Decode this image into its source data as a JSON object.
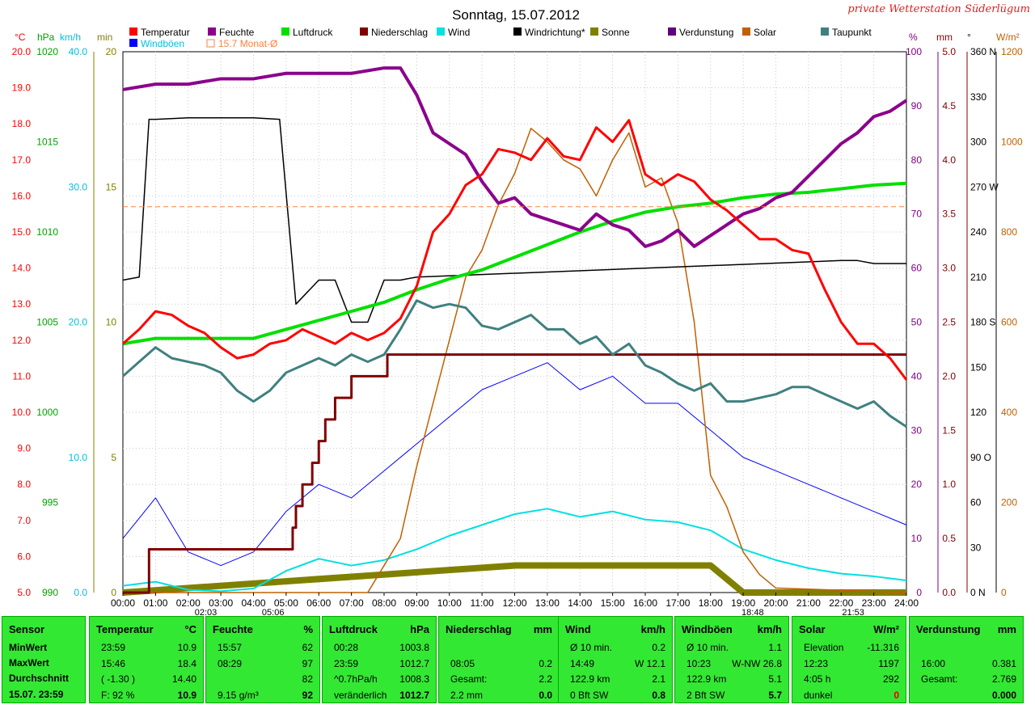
{
  "title": "Sonntag, 15.07.2012",
  "credit": "private Wetterstation Süderlügum",
  "legend": [
    {
      "label": "Temperatur",
      "color": "#ff0000"
    },
    {
      "label": "Feuchte",
      "color": "#8b008b"
    },
    {
      "label": "Luftdruck",
      "color": "#00e000"
    },
    {
      "label": "Niederschlag",
      "color": "#800000"
    },
    {
      "label": "Wind",
      "color": "#00e0e0"
    },
    {
      "label": "Windrichtung*",
      "color": "#000000"
    },
    {
      "label": "Sonne",
      "color": "#808000"
    },
    {
      "label": "Verdunstung",
      "color": "#600080"
    },
    {
      "label": "Solar",
      "color": "#c06000"
    },
    {
      "label": "Taupunkt",
      "color": "#408080"
    },
    {
      "label": "Windböen",
      "color": "#0000ff"
    },
    {
      "label": "15.7 Monat-Ø",
      "color": "#ff8040"
    }
  ],
  "axis_units": {
    "temp": "°C",
    "press": "hPa",
    "wind": "km/h",
    "min": "min",
    "hum": "%",
    "rain": "mm",
    "dir": "°",
    "solar": "W/m²"
  },
  "events": [
    "02:03",
    "05:06",
    "18:48",
    "21:53"
  ],
  "chart_data": {
    "type": "line",
    "x_ticks": [
      "00:00",
      "01:00",
      "02:00",
      "03:00",
      "04:00",
      "05:00",
      "06:00",
      "07:00",
      "08:00",
      "09:00",
      "10:00",
      "11:00",
      "12:00",
      "13:00",
      "14:00",
      "15:00",
      "16:00",
      "17:00",
      "18:00",
      "19:00",
      "20:00",
      "21:00",
      "22:00",
      "23:00",
      "24:00"
    ],
    "axes": {
      "temp": {
        "ticks": [
          "20.0",
          "19.0",
          "18.0",
          "17.0",
          "16.0",
          "15.0",
          "14.0",
          "13.0",
          "12.0",
          "11.0",
          "10.0",
          "9.0",
          "8.0",
          "7.0",
          "6.0",
          "5.0"
        ],
        "ylim": [
          5,
          20
        ]
      },
      "press": {
        "ticks": [
          "1020",
          "1015",
          "1010",
          "1005",
          "1000",
          "995",
          "990"
        ],
        "ylim": [
          990,
          1020
        ]
      },
      "wind": {
        "ticks": [
          "40.0",
          "30.0",
          "20.0",
          "10.0",
          "0.0"
        ],
        "ylim": [
          0,
          40
        ]
      },
      "min": {
        "ticks": [
          "20",
          "15",
          "10",
          "5",
          "0"
        ],
        "ylim": [
          0,
          20
        ]
      },
      "hum": {
        "ticks": [
          "100",
          "90",
          "80",
          "70",
          "60",
          "50",
          "40",
          "30",
          "20",
          "10",
          "0"
        ],
        "ylim": [
          0,
          100
        ]
      },
      "rain": {
        "ticks": [
          "5.0",
          "4.5",
          "4.0",
          "3.5",
          "3.0",
          "2.5",
          "2.0",
          "1.5",
          "1.0",
          "0.5",
          "0.0"
        ],
        "ylim": [
          0,
          5
        ]
      },
      "dir": {
        "ticks": [
          "360 N",
          "330",
          "300",
          "270 W",
          "240",
          "210",
          "180 S",
          "150",
          "120",
          "90 O",
          "60",
          "30",
          "0 N"
        ],
        "ylim": [
          0,
          360
        ]
      },
      "solar": {
        "ticks": [
          "1200",
          "1000",
          "800",
          "600",
          "400",
          "200",
          "0"
        ],
        "ylim": [
          0,
          1200
        ]
      }
    },
    "series": [
      {
        "name": "Temperatur",
        "color": "#ff0000",
        "x": [
          0,
          0.5,
          1,
          1.5,
          2,
          2.5,
          3,
          3.5,
          4,
          4.5,
          5,
          5.5,
          6,
          6.5,
          7,
          7.5,
          8,
          8.5,
          9,
          9.5,
          10,
          10.5,
          11,
          11.5,
          12,
          12.5,
          13,
          13.5,
          14,
          14.5,
          15,
          15.5,
          16,
          16.5,
          17,
          17.5,
          18,
          18.5,
          19,
          19.5,
          20,
          20.5,
          21,
          21.5,
          22,
          22.5,
          23,
          23.5,
          24
        ],
        "values": [
          11.9,
          12.3,
          12.8,
          12.7,
          12.4,
          12.2,
          11.8,
          11.5,
          11.6,
          11.9,
          12.0,
          12.3,
          12.1,
          11.9,
          12.2,
          12.0,
          12.2,
          12.6,
          13.5,
          15.0,
          15.5,
          16.3,
          16.6,
          17.3,
          17.2,
          17.0,
          17.6,
          17.1,
          17.0,
          17.9,
          17.5,
          18.1,
          16.6,
          16.3,
          16.6,
          16.4,
          15.9,
          15.6,
          15.2,
          14.8,
          14.8,
          14.5,
          14.4,
          13.4,
          12.5,
          11.9,
          11.9,
          11.5,
          10.9
        ]
      },
      {
        "name": "Feuchte",
        "color": "#8b008b",
        "x": [
          0,
          1,
          2,
          3,
          4,
          5,
          6,
          7,
          8,
          8.5,
          9,
          9.5,
          10,
          10.5,
          11,
          11.5,
          12,
          12.5,
          13,
          13.5,
          14,
          14.5,
          15,
          15.5,
          16,
          16.5,
          17,
          17.5,
          18,
          18.5,
          19,
          19.5,
          20,
          20.5,
          21,
          21.5,
          22,
          22.5,
          23,
          23.5,
          24
        ],
        "values": [
          93,
          94,
          94,
          95,
          95,
          96,
          96,
          96,
          97,
          97,
          92,
          85,
          83,
          81,
          76,
          72,
          73,
          70,
          69,
          68,
          67,
          70,
          68,
          67,
          64,
          65,
          67,
          64,
          66,
          68,
          70,
          71,
          73,
          74,
          77,
          80,
          83,
          85,
          88,
          89,
          91
        ]
      },
      {
        "name": "Luftdruck",
        "color": "#00e000",
        "x": [
          0,
          1,
          2,
          3,
          4,
          5,
          6,
          7,
          8,
          9,
          10,
          11,
          12,
          13,
          14,
          15,
          16,
          17,
          18,
          19,
          20,
          21,
          22,
          23,
          24
        ],
        "values": [
          1003.8,
          1004.1,
          1004.1,
          1004.1,
          1004.1,
          1004.6,
          1005.1,
          1005.6,
          1006.1,
          1006.8,
          1007.4,
          1007.9,
          1008.6,
          1009.3,
          1010.0,
          1010.6,
          1011.1,
          1011.4,
          1011.6,
          1011.9,
          1012.1,
          1012.2,
          1012.4,
          1012.6,
          1012.7
        ]
      },
      {
        "name": "Niederschlag",
        "color": "#800000",
        "x": [
          0,
          0.7,
          0.8,
          5.1,
          5.2,
          5.3,
          5.5,
          5.8,
          6.0,
          6.2,
          6.5,
          7.0,
          8.0,
          8.1,
          24
        ],
        "values": [
          0,
          0,
          0.4,
          0.4,
          0.6,
          0.8,
          1.0,
          1.2,
          1.4,
          1.6,
          1.8,
          2.0,
          2.0,
          2.2,
          2.2
        ]
      },
      {
        "name": "Taupunkt",
        "color": "#408080",
        "x": [
          0,
          0.5,
          1,
          1.5,
          2,
          2.5,
          3,
          3.5,
          4,
          4.5,
          5,
          5.5,
          6,
          6.5,
          7,
          7.5,
          8,
          8.5,
          9,
          9.5,
          10,
          10.5,
          11,
          11.5,
          12,
          12.5,
          13,
          13.5,
          14,
          14.5,
          15,
          15.5,
          16,
          16.5,
          17,
          17.5,
          18,
          18.5,
          19,
          19.5,
          20,
          20.5,
          21,
          21.5,
          22,
          22.5,
          23,
          23.5,
          24
        ],
        "values": [
          11.0,
          11.4,
          11.8,
          11.5,
          11.4,
          11.3,
          11.1,
          10.6,
          10.3,
          10.6,
          11.1,
          11.3,
          11.5,
          11.3,
          11.6,
          11.4,
          11.6,
          12.3,
          13.1,
          12.9,
          13.0,
          12.9,
          12.4,
          12.3,
          12.5,
          12.7,
          12.3,
          12.3,
          11.9,
          12.1,
          11.6,
          11.9,
          11.3,
          11.1,
          10.8,
          10.6,
          10.8,
          10.3,
          10.3,
          10.4,
          10.5,
          10.7,
          10.7,
          10.5,
          10.3,
          10.1,
          10.3,
          9.9,
          9.6
        ]
      },
      {
        "name": "Windrichtung*",
        "color": "#000000",
        "x": [
          0,
          0.5,
          0.8,
          1,
          2,
          3,
          4,
          4.8,
          5.3,
          6,
          6.5,
          7,
          7.5,
          8,
          8.5,
          9,
          22,
          22.5,
          23,
          23.5,
          24
        ],
        "values": [
          208,
          210,
          315,
          315,
          316,
          316,
          316,
          315,
          192,
          208,
          208,
          180,
          180,
          208,
          208,
          210,
          221,
          221,
          219,
          219,
          219
        ]
      },
      {
        "name": "Solar",
        "color": "#c06000",
        "x": [
          0,
          7.5,
          8,
          8.5,
          9,
          9.5,
          10,
          10.5,
          11,
          11.5,
          12,
          12.5,
          13,
          13.5,
          14,
          14.5,
          15,
          15.5,
          16,
          16.5,
          17,
          17.5,
          18,
          18.5,
          19,
          19.5,
          20,
          24
        ],
        "values": [
          0,
          0,
          60,
          120,
          280,
          420,
          560,
          700,
          760,
          860,
          930,
          1030,
          1000,
          960,
          940,
          880,
          960,
          1020,
          900,
          920,
          820,
          600,
          260,
          190,
          90,
          40,
          10,
          0
        ]
      },
      {
        "name": "Wind",
        "color": "#00e0e0",
        "x": [
          0,
          1,
          2,
          3,
          4,
          5,
          6,
          7,
          8,
          9,
          10,
          11,
          12,
          13,
          14,
          15,
          16,
          17,
          18,
          19,
          20,
          21,
          22,
          23,
          24
        ],
        "values": [
          0.5,
          0.8,
          0.2,
          0.1,
          0.3,
          1.6,
          2.5,
          2.0,
          2.4,
          3.2,
          4.2,
          5.0,
          5.8,
          6.2,
          5.6,
          6.0,
          5.4,
          5.2,
          4.6,
          3.2,
          2.4,
          1.8,
          1.4,
          1.2,
          0.9
        ]
      },
      {
        "name": "Windböen",
        "color": "#0000ff",
        "x": [
          0,
          1,
          2,
          3,
          4,
          5,
          6,
          7,
          8,
          9,
          10,
          11,
          12,
          13,
          14,
          15,
          16,
          17,
          18,
          19,
          20,
          21,
          22,
          23,
          24
        ],
        "values": [
          4,
          7,
          3,
          2,
          3,
          6,
          8,
          7,
          9,
          11,
          13,
          15,
          16,
          17,
          15,
          16,
          14,
          14,
          12,
          10,
          9,
          8,
          7,
          6,
          5
        ]
      },
      {
        "name": "Sonne",
        "color": "#808000",
        "x": [
          0,
          12,
          13,
          14,
          15,
          16,
          17,
          18,
          19,
          24
        ],
        "values": [
          0,
          1,
          1,
          1,
          1,
          1,
          1,
          1,
          0,
          0
        ]
      }
    ],
    "monthly_avg_temp": 15.7
  },
  "table": {
    "sensor": {
      "header": "Sensor",
      "rows": [
        "MinWert",
        "MaxWert",
        "Durchschnitt",
        "15.07. 23:59"
      ]
    },
    "temp": {
      "header": "Temperatur",
      "unit": "°C",
      "rows": [
        [
          "23:59",
          "10.9"
        ],
        [
          "15:46",
          "18.4"
        ],
        [
          "( -1.30 )",
          "14.40"
        ],
        [
          "F: 92 %",
          "10.9"
        ]
      ]
    },
    "hum": {
      "header": "Feuchte",
      "unit": "%",
      "rows": [
        [
          "15:57",
          "62"
        ],
        [
          "08:29",
          "97"
        ],
        [
          "",
          "82"
        ],
        [
          "9.15 g/m³",
          "92"
        ]
      ]
    },
    "press": {
      "header": "Luftdruck",
      "unit": "hPa",
      "rows": [
        [
          "00:28",
          "1003.8"
        ],
        [
          "23:59",
          "1012.7"
        ],
        [
          "^0.7hPa/h",
          "1008.3"
        ],
        [
          "veränderlich",
          "1012.7"
        ]
      ]
    },
    "rain": {
      "header": "Niederschlag",
      "unit": "mm",
      "rows": [
        [
          "",
          ""
        ],
        [
          "08:05",
          "0.2"
        ],
        [
          "Gesamt:",
          "2.2"
        ],
        [
          "2.2 mm",
          "0.0"
        ]
      ]
    },
    "wind": {
      "header": "Wind",
      "unit": "km/h",
      "rows": [
        [
          "Ø 10 min.",
          "0.2"
        ],
        [
          "14:49",
          "W 12.1"
        ],
        [
          "122.9 km",
          "2.1"
        ],
        [
          "0 Bft SW",
          "0.8"
        ]
      ]
    },
    "gust": {
      "header": "Windböen",
      "unit": "km/h",
      "rows": [
        [
          "Ø 10 min.",
          "1.1"
        ],
        [
          "10:23",
          "W-NW 26.8"
        ],
        [
          "122.9 km",
          "5.1"
        ],
        [
          "2 Bft SW",
          "5.7"
        ]
      ]
    },
    "solar": {
      "header": "Solar",
      "unit": "W/m²",
      "rows": [
        [
          "Elevation",
          "-11.316"
        ],
        [
          "12:23",
          "1197"
        ],
        [
          "4:05 h",
          "292"
        ],
        [
          "dunkel",
          "0"
        ]
      ]
    },
    "evap": {
      "header": "Verdunstung",
      "unit": "mm",
      "rows": [
        [
          "",
          ""
        ],
        [
          "16:00",
          "0.381"
        ],
        [
          "Gesamt:",
          "2.769"
        ],
        [
          "",
          "0.000"
        ]
      ]
    }
  }
}
